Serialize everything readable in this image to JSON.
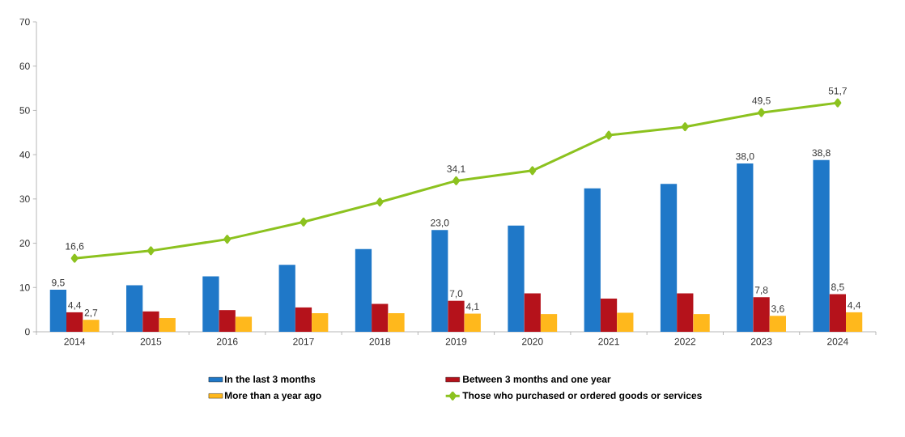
{
  "chart_data": {
    "type": "bar",
    "categories": [
      "2014",
      "2015",
      "2016",
      "2017",
      "2018",
      "2019",
      "2020",
      "2021",
      "2022",
      "2023",
      "2024"
    ],
    "ylim": [
      0,
      70
    ],
    "yticks": [
      0,
      10,
      20,
      30,
      40,
      50,
      60,
      70
    ],
    "legend": "bottom",
    "marker": "diamond",
    "series": [
      {
        "name": "In the last 3 months",
        "color": "#1f78c8",
        "values": [
          9.5,
          10.5,
          12.5,
          15.1,
          18.7,
          23.0,
          24.0,
          32.4,
          33.4,
          38.0,
          38.8
        ],
        "value_labels": [
          "9,5",
          null,
          null,
          null,
          null,
          "23,0",
          null,
          null,
          null,
          "38,0",
          "38,8"
        ]
      },
      {
        "name": "Between 3 months and one year",
        "color": "#b5121b",
        "values": [
          4.4,
          4.6,
          4.9,
          5.5,
          6.3,
          7.0,
          8.7,
          7.5,
          8.7,
          7.8,
          8.5
        ],
        "value_labels": [
          "4,4",
          null,
          null,
          null,
          null,
          "7,0",
          null,
          null,
          null,
          "7,8",
          "8,5"
        ]
      },
      {
        "name": "More than a year ago",
        "color": "#ffb81c",
        "values": [
          2.7,
          3.1,
          3.4,
          4.2,
          4.2,
          4.1,
          4.0,
          4.3,
          4.0,
          3.6,
          4.4
        ],
        "value_labels": [
          "2,7",
          null,
          null,
          null,
          null,
          "4,1",
          null,
          null,
          null,
          "3,6",
          "4,4"
        ]
      },
      {
        "name": "Those who purchased or ordered goods or services",
        "type": "line",
        "color": "#8cc21f",
        "values": [
          16.6,
          18.3,
          20.9,
          24.8,
          29.3,
          34.1,
          36.4,
          44.4,
          46.3,
          49.5,
          51.7
        ],
        "value_labels": [
          "16,6",
          null,
          null,
          null,
          null,
          "34,1",
          null,
          null,
          null,
          "49,5",
          "51,7"
        ]
      }
    ]
  }
}
